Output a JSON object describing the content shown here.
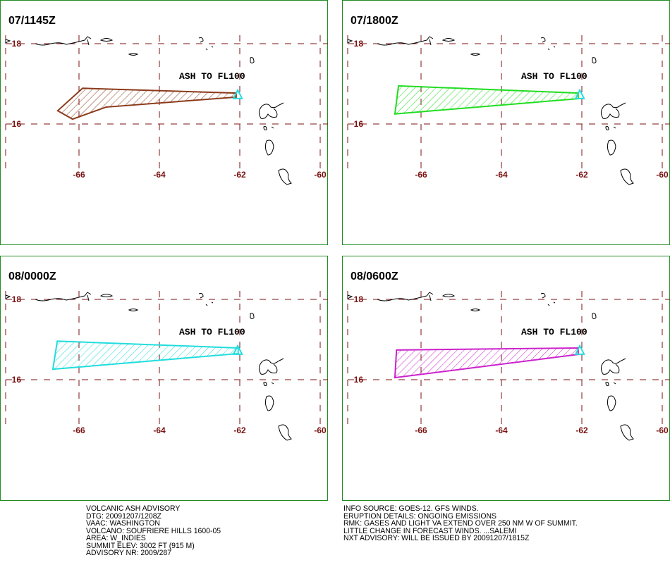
{
  "map": {
    "lon_ticks": [
      -66,
      -64,
      -62,
      -60
    ],
    "lat_ticks": [
      18,
      16
    ],
    "volcano": {
      "lon": -62.05,
      "lat": 16.74
    }
  },
  "panels": [
    {
      "title": "07/1145Z",
      "label": "ASH TO FL100",
      "color": "#8b3a1a",
      "polygon": [
        [
          -66.53,
          16.33
        ],
        [
          -65.91,
          16.89
        ],
        [
          -62.09,
          16.77
        ],
        [
          -62.09,
          16.67
        ],
        [
          -65.33,
          16.42
        ],
        [
          -66.16,
          16.12
        ]
      ]
    },
    {
      "title": "07/1800Z",
      "label": "ASH TO FL100",
      "color": "#22dd22",
      "polygon": [
        [
          -66.65,
          16.25
        ],
        [
          -66.56,
          16.95
        ],
        [
          -62.09,
          16.77
        ],
        [
          -62.09,
          16.63
        ]
      ]
    },
    {
      "title": "08/0000Z",
      "label": "ASH TO FL100",
      "color": "#22dddd",
      "polygon": [
        [
          -66.65,
          16.26
        ],
        [
          -66.54,
          16.96
        ],
        [
          -62.04,
          16.79
        ],
        [
          -62.04,
          16.65
        ]
      ]
    },
    {
      "title": "08/0600Z",
      "label": "ASH TO FL100",
      "color": "#cc22cc",
      "polygon": [
        [
          -66.65,
          16.05
        ],
        [
          -66.61,
          16.74
        ],
        [
          -62.09,
          16.79
        ],
        [
          -62.09,
          16.63
        ]
      ]
    }
  ],
  "advisory_left": [
    "VOLCANIC ASH ADVISORY",
    "DTG: 20091207/1208Z",
    "VAAC: WASHINGTON",
    "VOLCANO: SOUFRIERE HILLS 1600-05",
    "AREA: W_INDIES",
    "SUMMIT ELEV: 3002 FT (915 M)",
    "ADVISORY NR: 2009/287"
  ],
  "advisory_right": [
    "INFO SOURCE: GOES-12. GFS WINDS.",
    "ERUPTION DETAILS: ONGOING EMISSIONS",
    "RMK: GASES AND LIGHT VA EXTEND OVER 250 NM W OF SUMMIT.",
    "LITTLE CHANGE IN FORECAST WINDS. ...SALEMI",
    "NXT ADVISORY: WILL BE ISSUED BY 20091207/1815Z"
  ]
}
